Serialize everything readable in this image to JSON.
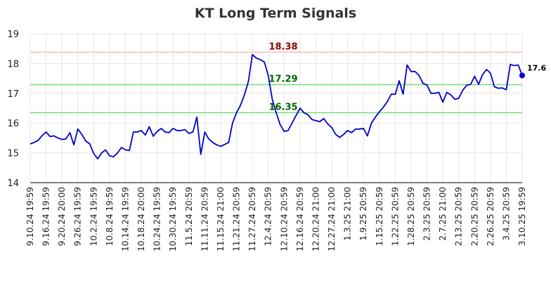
{
  "chart_data": {
    "type": "line",
    "title": "KT Long Term Signals",
    "xlabel": "",
    "ylabel": "",
    "ylim": [
      14,
      19
    ],
    "yticks": [
      14,
      15,
      16,
      17,
      18,
      19
    ],
    "grid": true,
    "line_color": "#0000cc",
    "xtick_labels": [
      "9.10.24 19:59",
      "9.16.24 19:59",
      "9.20.24 20:00",
      "9.26.24 19:59",
      "10.2.24 19:59",
      "10.8.24 19:59",
      "10.14.24 19:59",
      "10.18.24 20:00",
      "10.24.24 19:59",
      "10.30.24 19:59",
      "11.5.24 20:59",
      "11.11.24 20:59",
      "11.15.24 21:00",
      "11.21.24 20:59",
      "11.27.24 20:59",
      "12.4.24 20:59",
      "12.10.24 20:59",
      "12.16.24 20:59",
      "12.20.24 21:00",
      "12.27.24 21:00",
      "1.3.25 21:00",
      "1.9.25 20:59",
      "1.15.25 20:59",
      "1.22.25 20:59",
      "1.28.25 20:59",
      "2.3.25 20:59",
      "2.7.25 21:00",
      "2.13.25 20:59",
      "2.20.25 20:59",
      "2.26.25 20:59",
      "3.4.25 20:59",
      "3.10.25 19:59"
    ],
    "reference_lines": [
      {
        "value": 18.38,
        "label": "18.38",
        "line_color": "#ffbbbb",
        "text_color": "#8b0000"
      },
      {
        "value": 17.29,
        "label": "17.29",
        "line_color": "#77dd77",
        "text_color": "#006400"
      },
      {
        "value": 16.35,
        "label": "16.35",
        "line_color": "#77dd77",
        "text_color": "#006400"
      }
    ],
    "last_value_label": "17.6",
    "series": [
      {
        "values": [
          15.3,
          15.35,
          15.42,
          15.58,
          15.7,
          15.55,
          15.57,
          15.5,
          15.45,
          15.47,
          15.68,
          15.27,
          15.8,
          15.62,
          15.4,
          15.3,
          14.98,
          14.8,
          15.0,
          15.1,
          14.9,
          14.87,
          15.0,
          15.18,
          15.1,
          15.08,
          15.7,
          15.7,
          15.75,
          15.6,
          15.88,
          15.56,
          15.72,
          15.82,
          15.7,
          15.68,
          15.82,
          15.75,
          15.75,
          15.78,
          15.65,
          15.7,
          16.2,
          14.95,
          15.7,
          15.47,
          15.35,
          15.27,
          15.22,
          15.28,
          15.35,
          16.0,
          16.35,
          16.6,
          16.95,
          17.4,
          18.3,
          18.18,
          18.13,
          18.05,
          17.6,
          16.8,
          16.35,
          15.95,
          15.72,
          15.75,
          16.0,
          16.25,
          16.5,
          16.35,
          16.28,
          16.12,
          16.08,
          16.05,
          16.15,
          15.97,
          15.85,
          15.62,
          15.52,
          15.62,
          15.75,
          15.68,
          15.8,
          15.8,
          15.82,
          15.57,
          16.0,
          16.2,
          16.38,
          16.53,
          16.72,
          16.97,
          16.97,
          17.42,
          16.97,
          17.95,
          17.73,
          17.73,
          17.6,
          17.33,
          17.28,
          17.0,
          17.0,
          17.03,
          16.7,
          17.03,
          16.95,
          16.8,
          16.83,
          17.1,
          17.27,
          17.3,
          17.57,
          17.3,
          17.62,
          17.8,
          17.68,
          17.22,
          17.17,
          17.18,
          17.12,
          17.97,
          17.93,
          17.95,
          17.6
        ]
      }
    ]
  }
}
